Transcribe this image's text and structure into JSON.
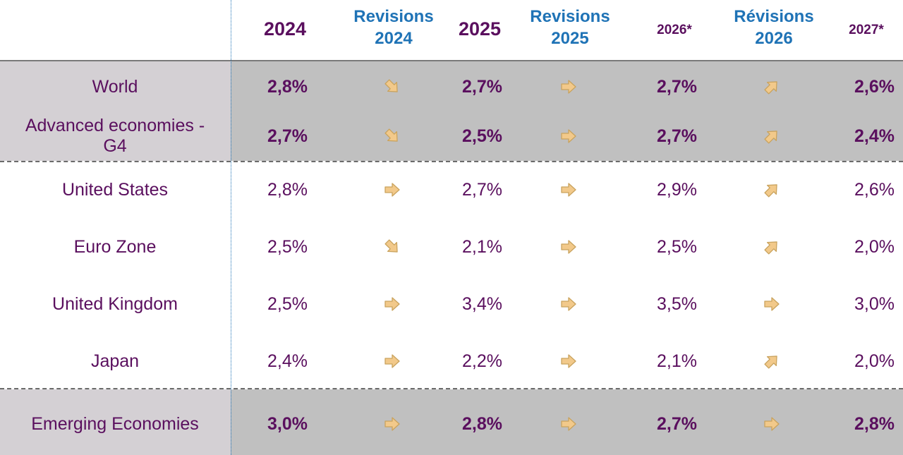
{
  "chart_data": {
    "type": "table",
    "headers": {
      "y2024": "2024",
      "rev2024_line1": "Revisions",
      "rev2024_line2": "2024",
      "y2025": "2025",
      "rev2025_line1": "Revisions",
      "rev2025_line2": "2025",
      "y2026": "2026*",
      "rev2026_line1": "Révisions",
      "rev2026_line2": "2026",
      "y2027": "2027*"
    },
    "rows": [
      {
        "label": [
          "World"
        ],
        "v2024": "2,8%",
        "r2024": "down-right",
        "v2025": "2,7%",
        "r2025": "right",
        "v2026": "2,7%",
        "r2026": "up-right",
        "v2027": "2,6%",
        "bold": true
      },
      {
        "label": [
          "Advanced economies -",
          "G4"
        ],
        "v2024": "2,7%",
        "r2024": "down-right",
        "v2025": "2,5%",
        "r2025": "right",
        "v2026": "2,7%",
        "r2026": "up-right",
        "v2027": "2,4%",
        "bold": true
      },
      {
        "label": [
          "United States"
        ],
        "v2024": "2,8%",
        "r2024": "right",
        "v2025": "2,7%",
        "r2025": "right",
        "v2026": "2,9%",
        "r2026": "up-right",
        "v2027": "2,6%",
        "bold": false
      },
      {
        "label": [
          "Euro Zone"
        ],
        "v2024": "2,5%",
        "r2024": "down-right",
        "v2025": "2,1%",
        "r2025": "right",
        "v2026": "2,5%",
        "r2026": "up-right",
        "v2027": "2,0%",
        "bold": false
      },
      {
        "label": [
          "United Kingdom"
        ],
        "v2024": "2,5%",
        "r2024": "right",
        "v2025": "3,4%",
        "r2025": "right",
        "v2026": "3,5%",
        "r2026": "right",
        "v2027": "3,0%",
        "bold": false
      },
      {
        "label": [
          "Japan"
        ],
        "v2024": "2,4%",
        "r2024": "right",
        "v2025": "2,2%",
        "r2025": "right",
        "v2026": "2,1%",
        "r2026": "up-right",
        "v2027": "2,0%",
        "bold": false
      },
      {
        "label": [
          "Emerging Economies"
        ],
        "v2024": "3,0%",
        "r2024": "right",
        "v2025": "2,8%",
        "r2025": "right",
        "v2026": "2,7%",
        "r2026": "right",
        "v2027": "2,8%",
        "bold": true
      }
    ]
  },
  "colors": {
    "text_purple": "#5a0f5e",
    "header_blue": "#1f73b6",
    "arrow_fill": "#f2c98a",
    "arrow_stroke": "#c9a35e",
    "band_label_grey": "#d4d0d4",
    "band_data_grey": "#c0c0c0"
  }
}
